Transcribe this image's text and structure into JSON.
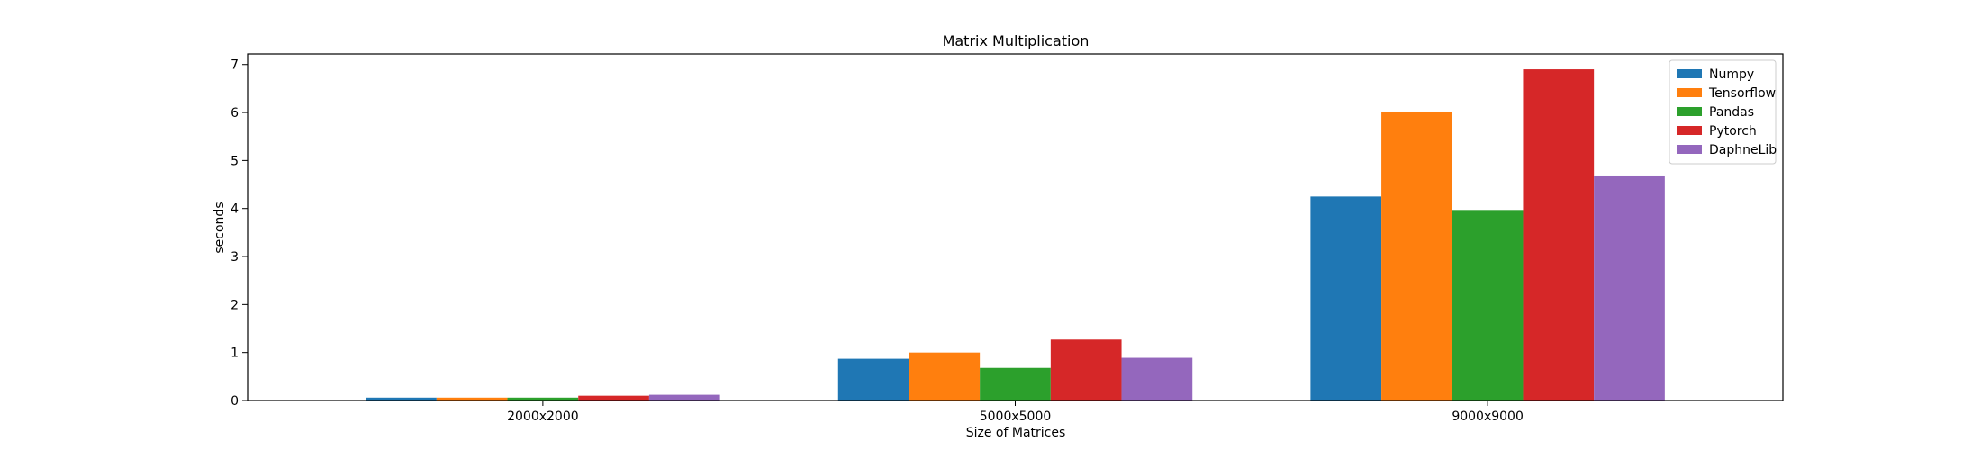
{
  "chart_data": {
    "type": "bar",
    "title": "Matrix Multiplication",
    "xlabel": "Size of Matrices",
    "ylabel": "seconds",
    "categories": [
      "2000x2000",
      "5000x5000",
      "9000x9000"
    ],
    "yticks": [
      0,
      1,
      2,
      3,
      4,
      5,
      6,
      7
    ],
    "ylim": [
      0,
      7.22
    ],
    "grid": false,
    "legend_position": "top-right",
    "series": [
      {
        "name": "Numpy",
        "color": "#1f77b4",
        "values": [
          0.06,
          0.87,
          4.25
        ]
      },
      {
        "name": "Tensorflow",
        "color": "#ff7f0e",
        "values": [
          0.06,
          1.0,
          6.02
        ]
      },
      {
        "name": "Pandas",
        "color": "#2ca02c",
        "values": [
          0.06,
          0.68,
          3.97
        ]
      },
      {
        "name": "Pytorch",
        "color": "#d62728",
        "values": [
          0.1,
          1.27,
          6.9
        ]
      },
      {
        "name": "DaphneLib",
        "color": "#9467bd",
        "values": [
          0.12,
          0.89,
          4.67
        ]
      }
    ]
  }
}
